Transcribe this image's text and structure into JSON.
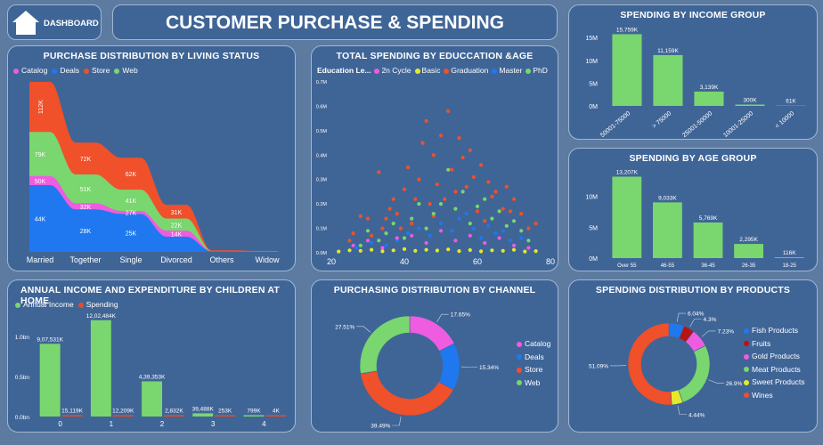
{
  "header": {
    "home_label": "DASHBOARD",
    "title": "CUSTOMER PURCHASE & SPENDING"
  },
  "colors": {
    "catalog": "#ee5ce0",
    "deals": "#1f78ef",
    "store": "#f0502a",
    "web": "#7ad66e",
    "basic": "#e4ea2a",
    "master": "#1f78ef",
    "bar": "#7ad66e",
    "income": "#7ad66e",
    "spending": "#e84a2b",
    "fish": "#1f78ef",
    "fruits": "#b71414",
    "gold": "#ee5ce0",
    "meat": "#7ad66e",
    "sweet": "#e4ea2a",
    "wines": "#f0502a"
  },
  "chart_data": [
    {
      "id": "living",
      "type": "area",
      "title": "PURCHASE DISTRIBUTION BY LIVING STATUS",
      "categories": [
        "Married",
        "Together",
        "Single",
        "Divorced",
        "Others",
        "Widow"
      ],
      "series": [
        {
          "name": "Deals",
          "values": [
            44,
            28,
            25,
            10,
            0.4,
            0.3
          ],
          "labels": [
            "44K",
            "28K",
            "25K",
            "",
            "",
            ""
          ]
        },
        {
          "name": "Catalog",
          "values": [
            50,
            32,
            27,
            14,
            0.5,
            0.4
          ],
          "labels": [
            "50K",
            "32K",
            "27K",
            "14K",
            "",
            ""
          ]
        },
        {
          "name": "Web",
          "values": [
            79,
            51,
            41,
            22,
            0.6,
            0.4
          ],
          "labels": [
            "79K",
            "51K",
            "41K",
            "22K",
            "",
            ""
          ]
        },
        {
          "name": "Store",
          "values": [
            112,
            72,
            62,
            31,
            1,
            0.6
          ],
          "labels": [
            "112K",
            "72K",
            "62K",
            "31K",
            "",
            ""
          ]
        }
      ],
      "legend": [
        "Catalog",
        "Deals",
        "Store",
        "Web"
      ]
    },
    {
      "id": "edu",
      "type": "scatter",
      "title": "TOTAL SPENDING BY EDUCCATION &AGE",
      "legend_title": "Education Le...",
      "legend": [
        "2n Cycle",
        "Basic",
        "Graduation",
        "Master",
        "PhD"
      ],
      "xlim": [
        20,
        80
      ],
      "xticks": [
        20,
        40,
        60,
        80
      ],
      "ylim": [
        0,
        0.7
      ],
      "yticks": [
        "0.0M",
        "0.1M",
        "0.2M",
        "0.3M",
        "0.4M",
        "0.5M",
        "0.6M",
        "0.7M"
      ],
      "groups": [
        {
          "name": "Graduation",
          "points": [
            [
              25,
              0.05
            ],
            [
              26,
              0.08
            ],
            [
              28,
              0.15
            ],
            [
              30,
              0.14
            ],
            [
              31,
              0.07
            ],
            [
              33,
              0.33
            ],
            [
              34,
              0.1
            ],
            [
              35,
              0.14
            ],
            [
              36,
              0.18
            ],
            [
              37,
              0.22
            ],
            [
              38,
              0.16
            ],
            [
              39,
              0.1
            ],
            [
              40,
              0.26
            ],
            [
              41,
              0.35
            ],
            [
              42,
              0.12
            ],
            [
              43,
              0.22
            ],
            [
              44,
              0.3
            ],
            [
              45,
              0.45
            ],
            [
              46,
              0.54
            ],
            [
              47,
              0.2
            ],
            [
              48,
              0.15
            ],
            [
              48,
              0.4
            ],
            [
              49,
              0.28
            ],
            [
              50,
              0.48
            ],
            [
              51,
              0.22
            ],
            [
              52,
              0.58
            ],
            [
              53,
              0.34
            ],
            [
              54,
              0.25
            ],
            [
              55,
              0.47
            ],
            [
              56,
              0.39
            ],
            [
              57,
              0.27
            ],
            [
              58,
              0.42
            ],
            [
              59,
              0.31
            ],
            [
              60,
              0.17
            ],
            [
              61,
              0.36
            ],
            [
              62,
              0.13
            ],
            [
              63,
              0.29
            ],
            [
              64,
              0.23
            ],
            [
              65,
              0.25
            ],
            [
              67,
              0.18
            ],
            [
              68,
              0.27
            ],
            [
              69,
              0.17
            ],
            [
              70,
              0.22
            ],
            [
              72,
              0.16
            ],
            [
              74,
              0.1
            ],
            [
              76,
              0.12
            ]
          ]
        },
        {
          "name": "PhD",
          "points": [
            [
              28,
              0.03
            ],
            [
              30,
              0.09
            ],
            [
              33,
              0.05
            ],
            [
              35,
              0.08
            ],
            [
              37,
              0.12
            ],
            [
              40,
              0.06
            ],
            [
              42,
              0.14
            ],
            [
              44,
              0.2
            ],
            [
              46,
              0.1
            ],
            [
              48,
              0.16
            ],
            [
              50,
              0.2
            ],
            [
              52,
              0.34
            ],
            [
              54,
              0.18
            ],
            [
              56,
              0.25
            ],
            [
              58,
              0.12
            ],
            [
              60,
              0.19
            ],
            [
              62,
              0.22
            ],
            [
              64,
              0.14
            ],
            [
              66,
              0.17
            ],
            [
              68,
              0.11
            ],
            [
              70,
              0.13
            ],
            [
              72,
              0.09
            ],
            [
              74,
              0.05
            ]
          ]
        },
        {
          "name": "Master",
          "points": [
            [
              27,
              0.02
            ],
            [
              31,
              0.04
            ],
            [
              35,
              0.03
            ],
            [
              38,
              0.05
            ],
            [
              41,
              0.08
            ],
            [
              44,
              0.1
            ],
            [
              47,
              0.07
            ],
            [
              50,
              0.12
            ],
            [
              53,
              0.09
            ],
            [
              55,
              0.14
            ],
            [
              57,
              0.16
            ],
            [
              59,
              0.1
            ],
            [
              61,
              0.06
            ],
            [
              63,
              0.11
            ],
            [
              65,
              0.08
            ],
            [
              67,
              0.09
            ],
            [
              69,
              0.05
            ],
            [
              72,
              0.06
            ]
          ]
        },
        {
          "name": "2n Cycle",
          "points": [
            [
              26,
              0.03
            ],
            [
              30,
              0.05
            ],
            [
              34,
              0.02
            ],
            [
              38,
              0.06
            ],
            [
              42,
              0.07
            ],
            [
              46,
              0.04
            ],
            [
              50,
              0.09
            ],
            [
              54,
              0.05
            ],
            [
              58,
              0.07
            ],
            [
              62,
              0.04
            ],
            [
              66,
              0.06
            ],
            [
              70,
              0.03
            ],
            [
              74,
              0.02
            ]
          ]
        },
        {
          "name": "Basic",
          "points": [
            [
              22,
              0.005
            ],
            [
              25,
              0.01
            ],
            [
              28,
              0.008
            ],
            [
              31,
              0.012
            ],
            [
              34,
              0.006
            ],
            [
              37,
              0.01
            ],
            [
              40,
              0.015
            ],
            [
              43,
              0.008
            ],
            [
              46,
              0.012
            ],
            [
              49,
              0.009
            ],
            [
              52,
              0.014
            ],
            [
              55,
              0.007
            ],
            [
              58,
              0.011
            ],
            [
              61,
              0.006
            ],
            [
              64,
              0.01
            ],
            [
              67,
              0.008
            ],
            [
              70,
              0.012
            ],
            [
              73,
              0.005
            ],
            [
              76,
              0.007
            ]
          ]
        }
      ]
    },
    {
      "id": "income_grp",
      "type": "bar",
      "title": "SPENDING BY INCOME GROUP",
      "categories": [
        "50001-75000",
        "> 75000",
        "25001-50000",
        "10001-25000",
        "< 10000"
      ],
      "values": [
        15759,
        11159,
        3139,
        300,
        61
      ],
      "labels": [
        "15,759K",
        "11,159K",
        "3,139K",
        "300K",
        "61K"
      ],
      "ylim": [
        0,
        17000
      ],
      "yticks": [
        "0M",
        "5M",
        "10M",
        "15M"
      ]
    },
    {
      "id": "age_grp",
      "type": "bar",
      "title": "SPENDING BY AGE GROUP",
      "categories": [
        "Over 55",
        "46-55",
        "36-45",
        "26-35",
        "18-25"
      ],
      "values": [
        13207,
        9033,
        5769,
        2295,
        116
      ],
      "labels": [
        "13,207K",
        "9,033K",
        "5,769K",
        "2,295K",
        "116K"
      ],
      "ylim": [
        0,
        14000
      ],
      "yticks": [
        "0M",
        "5M",
        "10M"
      ]
    },
    {
      "id": "children",
      "type": "bar",
      "title": "ANNUAL INCOME AND EXPENDITURE BY CHILDREN AT HOME",
      "categories": [
        "0",
        "1",
        "2",
        "3",
        "4"
      ],
      "legend": [
        "Annual Income",
        "Spending"
      ],
      "series": [
        {
          "name": "Annual Income",
          "values": [
            907531,
            1202484,
            439353,
            39488,
            799
          ],
          "labels": [
            "9,07,531K",
            "12,02,484K",
            "4,39,353K",
            "39,488K",
            "799K"
          ]
        },
        {
          "name": "Spending",
          "values": [
            15119,
            12209,
            2832,
            253,
            4
          ],
          "labels": [
            "15,119K",
            "12,209K",
            "2,832K",
            "253K",
            "4K"
          ]
        }
      ],
      "ylim": [
        0,
        1300000
      ],
      "yticks": [
        "0.0bn",
        "0.5bn",
        "1.0bn"
      ]
    },
    {
      "id": "channel",
      "type": "pie",
      "title": "PURCHASING DISTRIBUTION BY CHANNEL",
      "slices": [
        {
          "name": "Catalog",
          "value": 17.65,
          "label": "17.65%"
        },
        {
          "name": "Deals",
          "value": 15.34,
          "label": "15.34%"
        },
        {
          "name": "Store",
          "value": 39.49,
          "label": "39.49%"
        },
        {
          "name": "Web",
          "value": 27.51,
          "label": "27.51%"
        }
      ],
      "legend": [
        "Catalog",
        "Deals",
        "Store",
        "Web"
      ]
    },
    {
      "id": "products",
      "type": "pie",
      "title": "SPENDING DISTRIBUTION BY PRODUCTS",
      "slices": [
        {
          "name": "Fish Products",
          "value": 6.04,
          "label": "6.04%"
        },
        {
          "name": "Fruits",
          "value": 4.3,
          "label": "4.3%"
        },
        {
          "name": "Gold Products",
          "value": 7.23,
          "label": "7.23%"
        },
        {
          "name": "Meat Products",
          "value": 26.9,
          "label": "26.9%"
        },
        {
          "name": "Sweet Products",
          "value": 4.44,
          "label": "4.44%"
        },
        {
          "name": "Wines",
          "value": 51.09,
          "label": "51.09%"
        }
      ],
      "legend": [
        "Fish Products",
        "Fruits",
        "Gold Products",
        "Meat Products",
        "Sweet Products",
        "Wines"
      ]
    }
  ]
}
